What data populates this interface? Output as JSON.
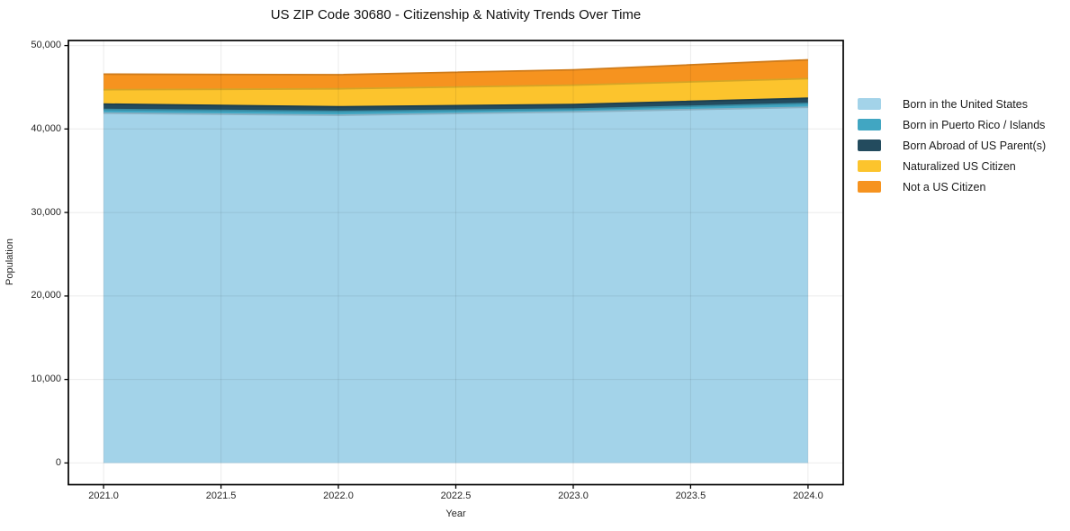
{
  "chart_data": {
    "type": "area",
    "stacked": true,
    "title": "US ZIP Code 30680 - Citizenship & Nativity Trends Over Time",
    "xlabel": "Year",
    "ylabel": "Population",
    "x": [
      2021,
      2022,
      2023,
      2024
    ],
    "series": [
      {
        "name": "Born in the United States",
        "color": "#a3d3e9",
        "values": [
          41900,
          41650,
          42050,
          42600
        ]
      },
      {
        "name": "Born in Puerto Rico / Islands",
        "color": "#41a6c2",
        "values": [
          430,
          460,
          320,
          460
        ]
      },
      {
        "name": "Born Abroad of US Parent(s)",
        "color": "#234b5e",
        "values": [
          650,
          540,
          570,
          620
        ]
      },
      {
        "name": "Naturalized US Citizen",
        "color": "#fcc42d",
        "values": [
          1720,
          2160,
          2310,
          2350
        ]
      },
      {
        "name": "Not a US Citizen",
        "color": "#f6931f",
        "values": [
          1870,
          1690,
          1840,
          2250
        ]
      }
    ],
    "x_ticks": [
      {
        "value": 2021.0,
        "label": "2021.0"
      },
      {
        "value": 2021.5,
        "label": "2021.5"
      },
      {
        "value": 2022.0,
        "label": "2022.0"
      },
      {
        "value": 2022.5,
        "label": "2022.5"
      },
      {
        "value": 2023.0,
        "label": "2023.0"
      },
      {
        "value": 2023.5,
        "label": "2023.5"
      },
      {
        "value": 2024.0,
        "label": "2024.0"
      }
    ],
    "y_ticks": [
      {
        "value": 0,
        "label": "0"
      },
      {
        "value": 10000,
        "label": "10,000"
      },
      {
        "value": 20000,
        "label": "20,000"
      },
      {
        "value": 30000,
        "label": "30,000"
      },
      {
        "value": 40000,
        "label": "40,000"
      },
      {
        "value": 50000,
        "label": "50,000"
      }
    ],
    "xlim": [
      2020.85,
      2024.15
    ],
    "ylim": [
      -2600,
      50600
    ],
    "grid": true,
    "legend_position": "right",
    "colors": {
      "background": "#ffffff",
      "spine": "#000000",
      "gridline": "rgba(0,0,0,0.08)",
      "text": "#262626"
    }
  }
}
